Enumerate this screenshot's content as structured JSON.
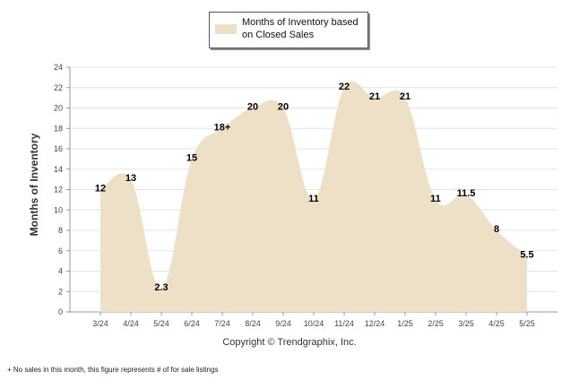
{
  "chart_data": {
    "type": "area",
    "categories": [
      "3/24",
      "4/24",
      "5/24",
      "6/24",
      "7/24",
      "8/24",
      "9/24",
      "10/24",
      "11/24",
      "12/24",
      "1/25",
      "2/25",
      "3/25",
      "4/25",
      "5/25"
    ],
    "series": [
      {
        "name": "Months of Inventory based on Closed Sales",
        "values": [
          12,
          13,
          2.3,
          15,
          18,
          20,
          20,
          11,
          22,
          21,
          21,
          11,
          11.5,
          8,
          5.5
        ],
        "color": "#ede0c6"
      }
    ],
    "data_labels": [
      "12",
      "13",
      "2.3",
      "15",
      "18+",
      "20",
      "20",
      "11",
      "22",
      "21",
      "21",
      "11",
      "11.5",
      "8",
      "5.5"
    ],
    "xlabel": "",
    "ylabel": "Months of Inventory",
    "ylim": [
      0,
      24
    ],
    "yticks": [
      0,
      2,
      4,
      6,
      8,
      10,
      12,
      14,
      16,
      18,
      20,
      22,
      24
    ],
    "grid": true,
    "legend_position": "top-center"
  },
  "legend": {
    "label": "Months of Inventory based on Closed Sales"
  },
  "copyright": "Copyright © Trendgraphix, Inc.",
  "footnote": "+ No sales in this month, this figure represents # of for sale listings"
}
